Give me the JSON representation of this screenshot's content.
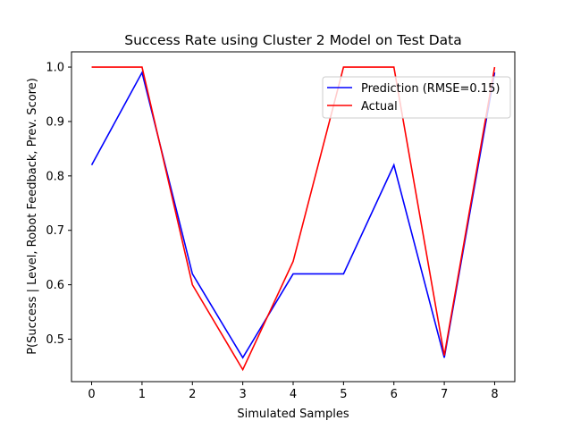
{
  "chart_data": {
    "type": "line",
    "title": "Success Rate using Cluster 2 Model on Test Data",
    "xlabel": "Simulated Samples",
    "ylabel": "P(Success | Level, Robot Feedback, Prev. Score)",
    "x": [
      0,
      1,
      2,
      3,
      4,
      5,
      6,
      7,
      8
    ],
    "xticks": [
      "0",
      "1",
      "2",
      "3",
      "4",
      "5",
      "6",
      "7",
      "8"
    ],
    "yticks": [
      "0.5",
      "0.6",
      "0.7",
      "0.8",
      "0.9",
      "1.0"
    ],
    "xlim": [
      -0.4,
      8.4
    ],
    "ylim": [
      0.422,
      1.028
    ],
    "grid": false,
    "legend_position": "upper-right",
    "series": [
      {
        "name": "Prediction (RMSE=0.15)",
        "color": "#0000ff",
        "values": [
          0.82,
          0.99,
          0.62,
          0.466,
          0.62,
          0.62,
          0.82,
          0.466,
          0.99
        ]
      },
      {
        "name": "Actual",
        "color": "#ff0000",
        "values": [
          1.0,
          1.0,
          0.6,
          0.444,
          0.643,
          1.0,
          1.0,
          0.47,
          1.0
        ]
      }
    ]
  }
}
